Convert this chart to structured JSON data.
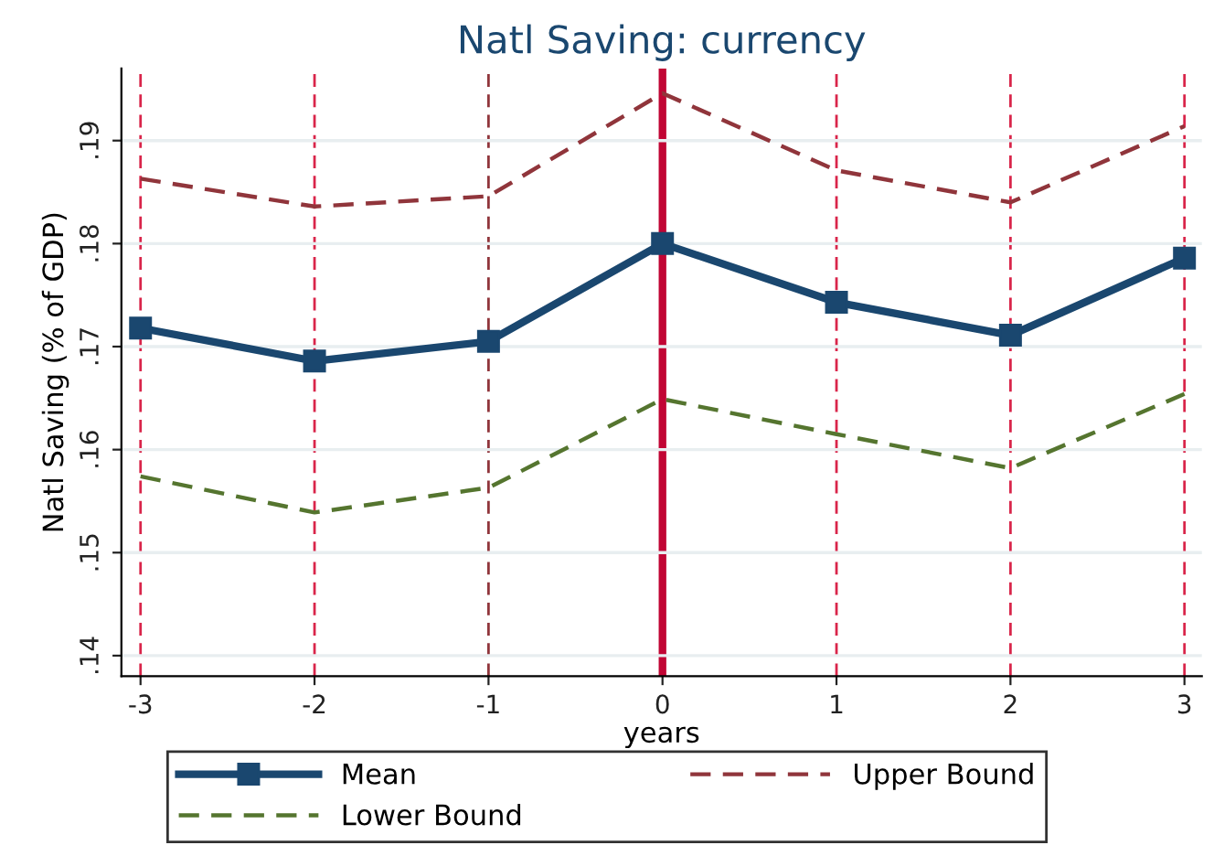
{
  "chart_data": {
    "type": "line",
    "title": "Natl Saving: currency",
    "xlabel": "years",
    "ylabel": "Natl Saving (% of GDP)",
    "x": [
      -3,
      -2,
      -1,
      0,
      1,
      2,
      3
    ],
    "series": [
      {
        "name": "Mean",
        "color": "#1a476f",
        "values": [
          0.1718,
          0.1686,
          0.1705,
          0.18,
          0.1743,
          0.1711,
          0.1786
        ],
        "marker": "square",
        "line_style": "solid"
      },
      {
        "name": "Upper Bound",
        "color": "#90353b",
        "values": [
          0.1863,
          0.1836,
          0.1846,
          0.1946,
          0.1871,
          0.184,
          0.1914
        ],
        "marker": "none",
        "line_style": "dashed"
      },
      {
        "name": "Lower Bound",
        "color": "#55752f",
        "values": [
          0.1574,
          0.1539,
          0.1563,
          0.1649,
          0.1615,
          0.1582,
          0.1654
        ],
        "marker": "none",
        "line_style": "dashed"
      }
    ],
    "xlim": [
      -3.11,
      3.1
    ],
    "ylim": [
      0.138,
      0.197
    ],
    "xticks": [
      -3,
      -2,
      -1,
      0,
      1,
      2,
      3
    ],
    "yticks": [
      {
        "value": 0.14,
        "label": ".14"
      },
      {
        "value": 0.15,
        "label": ".15"
      },
      {
        "value": 0.16,
        "label": ".16"
      },
      {
        "value": 0.17,
        "label": ".17"
      },
      {
        "value": 0.18,
        "label": ".18"
      },
      {
        "value": 0.19,
        "label": ".19"
      }
    ],
    "ref_lines": [
      {
        "axis": "x",
        "value": -3,
        "color": "#d9254a",
        "line_style": "dashed"
      },
      {
        "axis": "x",
        "value": -2,
        "color": "#d9254a",
        "line_style": "dashed"
      },
      {
        "axis": "x",
        "value": -1,
        "color": "#90353b",
        "line_style": "dashed"
      },
      {
        "axis": "x",
        "value": 0,
        "color": "#c10534",
        "line_style": "solid"
      },
      {
        "axis": "x",
        "value": 1,
        "color": "#d9254a",
        "line_style": "dashed"
      },
      {
        "axis": "x",
        "value": 2,
        "color": "#d9254a",
        "line_style": "dashed"
      },
      {
        "axis": "x",
        "value": 3,
        "color": "#d9254a",
        "line_style": "dashed"
      }
    ],
    "grid": "y",
    "legend": "bottom"
  }
}
